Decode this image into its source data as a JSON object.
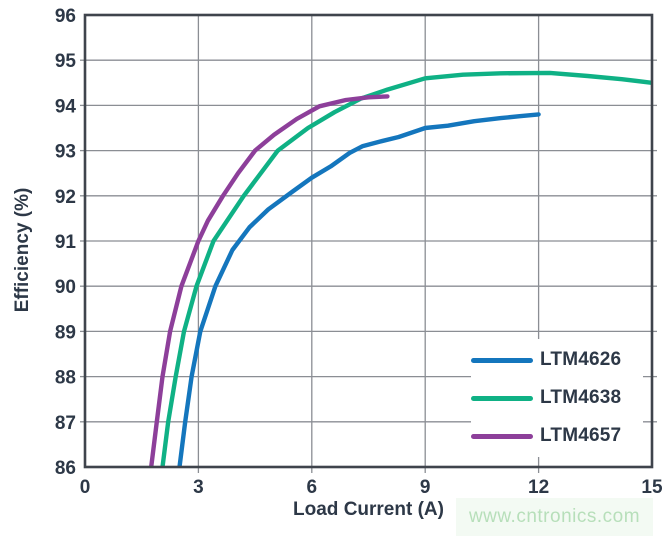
{
  "watermark": {
    "text": "www.cntronics.com",
    "color": "#b7dfba",
    "background": "#f3faf3"
  },
  "chart_data": {
    "type": "line",
    "title": "",
    "xlabel": "Load Current (A)",
    "ylabel": "Efficiency (%)",
    "xlim": [
      0,
      15
    ],
    "ylim": [
      86,
      96
    ],
    "xticks": [
      0,
      3,
      6,
      9,
      12,
      15
    ],
    "yticks": [
      86,
      87,
      88,
      89,
      90,
      91,
      92,
      93,
      94,
      95,
      96
    ],
    "grid": true,
    "legend_position": "inside-bottom-right",
    "colors": {
      "axis_text": "#2d3847",
      "grid": "#8b8e94",
      "border": "#3f444c",
      "background": "#ffffff"
    },
    "series": [
      {
        "name": "LTM4626",
        "color": "#1476bd",
        "points": [
          [
            2.5,
            86
          ],
          [
            2.65,
            87
          ],
          [
            2.82,
            88
          ],
          [
            3.05,
            89
          ],
          [
            3.45,
            90
          ],
          [
            3.9,
            90.8
          ],
          [
            4.35,
            91.3
          ],
          [
            4.85,
            91.7
          ],
          [
            5.5,
            92.1
          ],
          [
            6.0,
            92.4
          ],
          [
            6.5,
            92.65
          ],
          [
            7.0,
            92.95
          ],
          [
            7.35,
            93.1
          ],
          [
            7.8,
            93.2
          ],
          [
            8.3,
            93.3
          ],
          [
            9.0,
            93.5
          ],
          [
            9.6,
            93.55
          ],
          [
            10.3,
            93.65
          ],
          [
            11.0,
            93.72
          ],
          [
            11.5,
            93.76
          ],
          [
            12.0,
            93.8
          ]
        ]
      },
      {
        "name": "LTM4638",
        "color": "#0fb185",
        "points": [
          [
            2.05,
            86
          ],
          [
            2.2,
            87
          ],
          [
            2.4,
            88
          ],
          [
            2.62,
            89
          ],
          [
            2.95,
            90
          ],
          [
            3.4,
            91
          ],
          [
            4.2,
            92
          ],
          [
            5.1,
            93
          ],
          [
            5.9,
            93.5
          ],
          [
            6.6,
            93.85
          ],
          [
            7.3,
            94.15
          ],
          [
            8.0,
            94.35
          ],
          [
            9.0,
            94.6
          ],
          [
            10.0,
            94.68
          ],
          [
            11.0,
            94.71
          ],
          [
            12.3,
            94.72
          ],
          [
            13.3,
            94.65
          ],
          [
            14.2,
            94.58
          ],
          [
            15.0,
            94.5
          ]
        ]
      },
      {
        "name": "LTM4657",
        "color": "#8d3f9a",
        "points": [
          [
            1.75,
            86
          ],
          [
            1.9,
            87
          ],
          [
            2.05,
            88
          ],
          [
            2.25,
            89
          ],
          [
            2.55,
            90
          ],
          [
            3.0,
            91
          ],
          [
            3.25,
            91.45
          ],
          [
            3.65,
            92
          ],
          [
            4.05,
            92.5
          ],
          [
            4.5,
            93
          ],
          [
            5.0,
            93.35
          ],
          [
            5.6,
            93.7
          ],
          [
            6.2,
            93.98
          ],
          [
            6.9,
            94.12
          ],
          [
            7.5,
            94.18
          ],
          [
            8.0,
            94.2
          ]
        ]
      }
    ]
  }
}
